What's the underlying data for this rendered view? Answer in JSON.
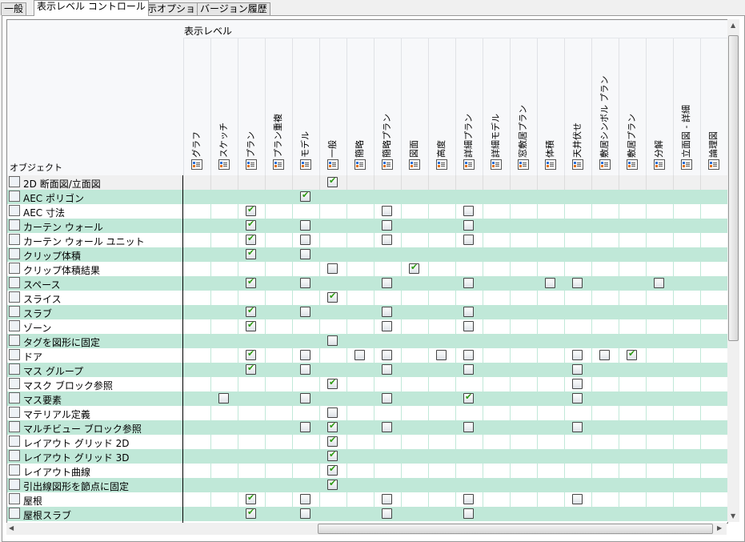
{
  "tabs": [
    {
      "label": "一般"
    },
    {
      "label": "表示レベル コントロール",
      "active": true
    },
    {
      "label": "表示オプション"
    },
    {
      "label": "バージョン履歴"
    }
  ],
  "grid": {
    "group_header": "表示レベル",
    "object_header": "オブジェクト",
    "columns": [
      "グラフ",
      "スケッチ",
      "プラン",
      "プラン重複",
      "モデル",
      "一般",
      "簡略",
      "簡略プラン",
      "図面",
      "高度",
      "詳細プラン",
      "詳細モデル",
      "窓敷居プラン",
      "体積",
      "天井伏せ",
      "敷居シンボル プラン",
      "敷居プラン",
      "分解",
      "立面図 - 詳細",
      "論理図"
    ],
    "column_icon": "display-rep-icon",
    "rows": [
      {
        "name": "2D 断面図/立面図",
        "icon": "section-elevation-icon",
        "selected": true,
        "cells": {
          "5": "on"
        }
      },
      {
        "name": "AEC ポリゴン",
        "icon": "polygon-icon",
        "cells": {
          "4": "on"
        }
      },
      {
        "name": "AEC 寸法",
        "icon": "dimension-icon",
        "cells": {
          "2": "on",
          "7": "off",
          "10": "off"
        }
      },
      {
        "name": "カーテン ウォール",
        "icon": "curtain-wall-icon",
        "cells": {
          "2": "on",
          "4": "off",
          "7": "off",
          "10": "off"
        }
      },
      {
        "name": "カーテン ウォール ユニット",
        "icon": "curtain-wall-unit-icon",
        "cells": {
          "2": "on",
          "4": "off",
          "7": "off",
          "10": "off"
        }
      },
      {
        "name": "クリップ体積",
        "icon": "clip-volume-icon",
        "cells": {
          "2": "on",
          "4": "off"
        }
      },
      {
        "name": "クリップ体積結果",
        "icon": "clip-volume-result-icon",
        "cells": {
          "5": "off",
          "8": "on"
        }
      },
      {
        "name": "スペース",
        "icon": "space-icon",
        "cells": {
          "2": "on",
          "4": "off",
          "7": "off",
          "10": "off",
          "13": "off",
          "14": "off",
          "17": "off"
        }
      },
      {
        "name": "スライス",
        "icon": "slice-icon",
        "cells": {
          "5": "on"
        }
      },
      {
        "name": "スラブ",
        "icon": "slab-icon",
        "cells": {
          "2": "on",
          "4": "off",
          "7": "off",
          "10": "off"
        }
      },
      {
        "name": "ゾーン",
        "icon": "zone-icon",
        "cells": {
          "2": "on",
          "7": "off",
          "10": "off"
        }
      },
      {
        "name": "タグを図形に固定",
        "icon": "anchor-tag-icon",
        "cells": {
          "5": "off"
        }
      },
      {
        "name": "ドア",
        "icon": "door-icon",
        "cells": {
          "2": "on",
          "4": "off",
          "6": "off",
          "7": "off",
          "9": "off",
          "10": "off",
          "14": "off",
          "15": "off",
          "16": "on"
        }
      },
      {
        "name": "マス グループ",
        "icon": "mass-group-icon",
        "cells": {
          "2": "on",
          "4": "off",
          "7": "off",
          "10": "off",
          "14": "off"
        }
      },
      {
        "name": "マスク ブロック参照",
        "icon": "mask-block-icon",
        "cells": {
          "5": "on",
          "14": "off"
        }
      },
      {
        "name": "マス要素",
        "icon": "mass-element-icon",
        "cells": {
          "1": "off",
          "4": "off",
          "7": "off",
          "10": "on",
          "14": "off"
        }
      },
      {
        "name": "マテリアル定義",
        "icon": "material-icon",
        "cells": {
          "5": "off"
        }
      },
      {
        "name": "マルチビュー ブロック参照",
        "icon": "multiview-block-icon",
        "cells": {
          "4": "off",
          "5": "on",
          "7": "off",
          "10": "off",
          "14": "off"
        }
      },
      {
        "name": "レイアウト グリッド 2D",
        "icon": "layout-grid-2d-icon",
        "cells": {
          "5": "on"
        }
      },
      {
        "name": "レイアウト グリッド 3D",
        "icon": "layout-grid-3d-icon",
        "cells": {
          "5": "on"
        }
      },
      {
        "name": "レイアウト曲線",
        "icon": "layout-curve-icon",
        "cells": {
          "5": "on"
        }
      },
      {
        "name": "引出線図形を節点に固定",
        "icon": "anchor-leader-icon",
        "cells": {
          "5": "on"
        }
      },
      {
        "name": "屋根",
        "icon": "roof-icon",
        "cells": {
          "2": "on",
          "4": "off",
          "7": "off",
          "10": "off",
          "14": "off"
        }
      },
      {
        "name": "屋根スラブ",
        "icon": "roof-slab-icon",
        "cells": {
          "2": "on",
          "4": "off",
          "7": "off",
          "10": "off"
        }
      }
    ]
  },
  "colors": {
    "row_alt": "#c0e8d8",
    "check": "#2c9a10"
  }
}
